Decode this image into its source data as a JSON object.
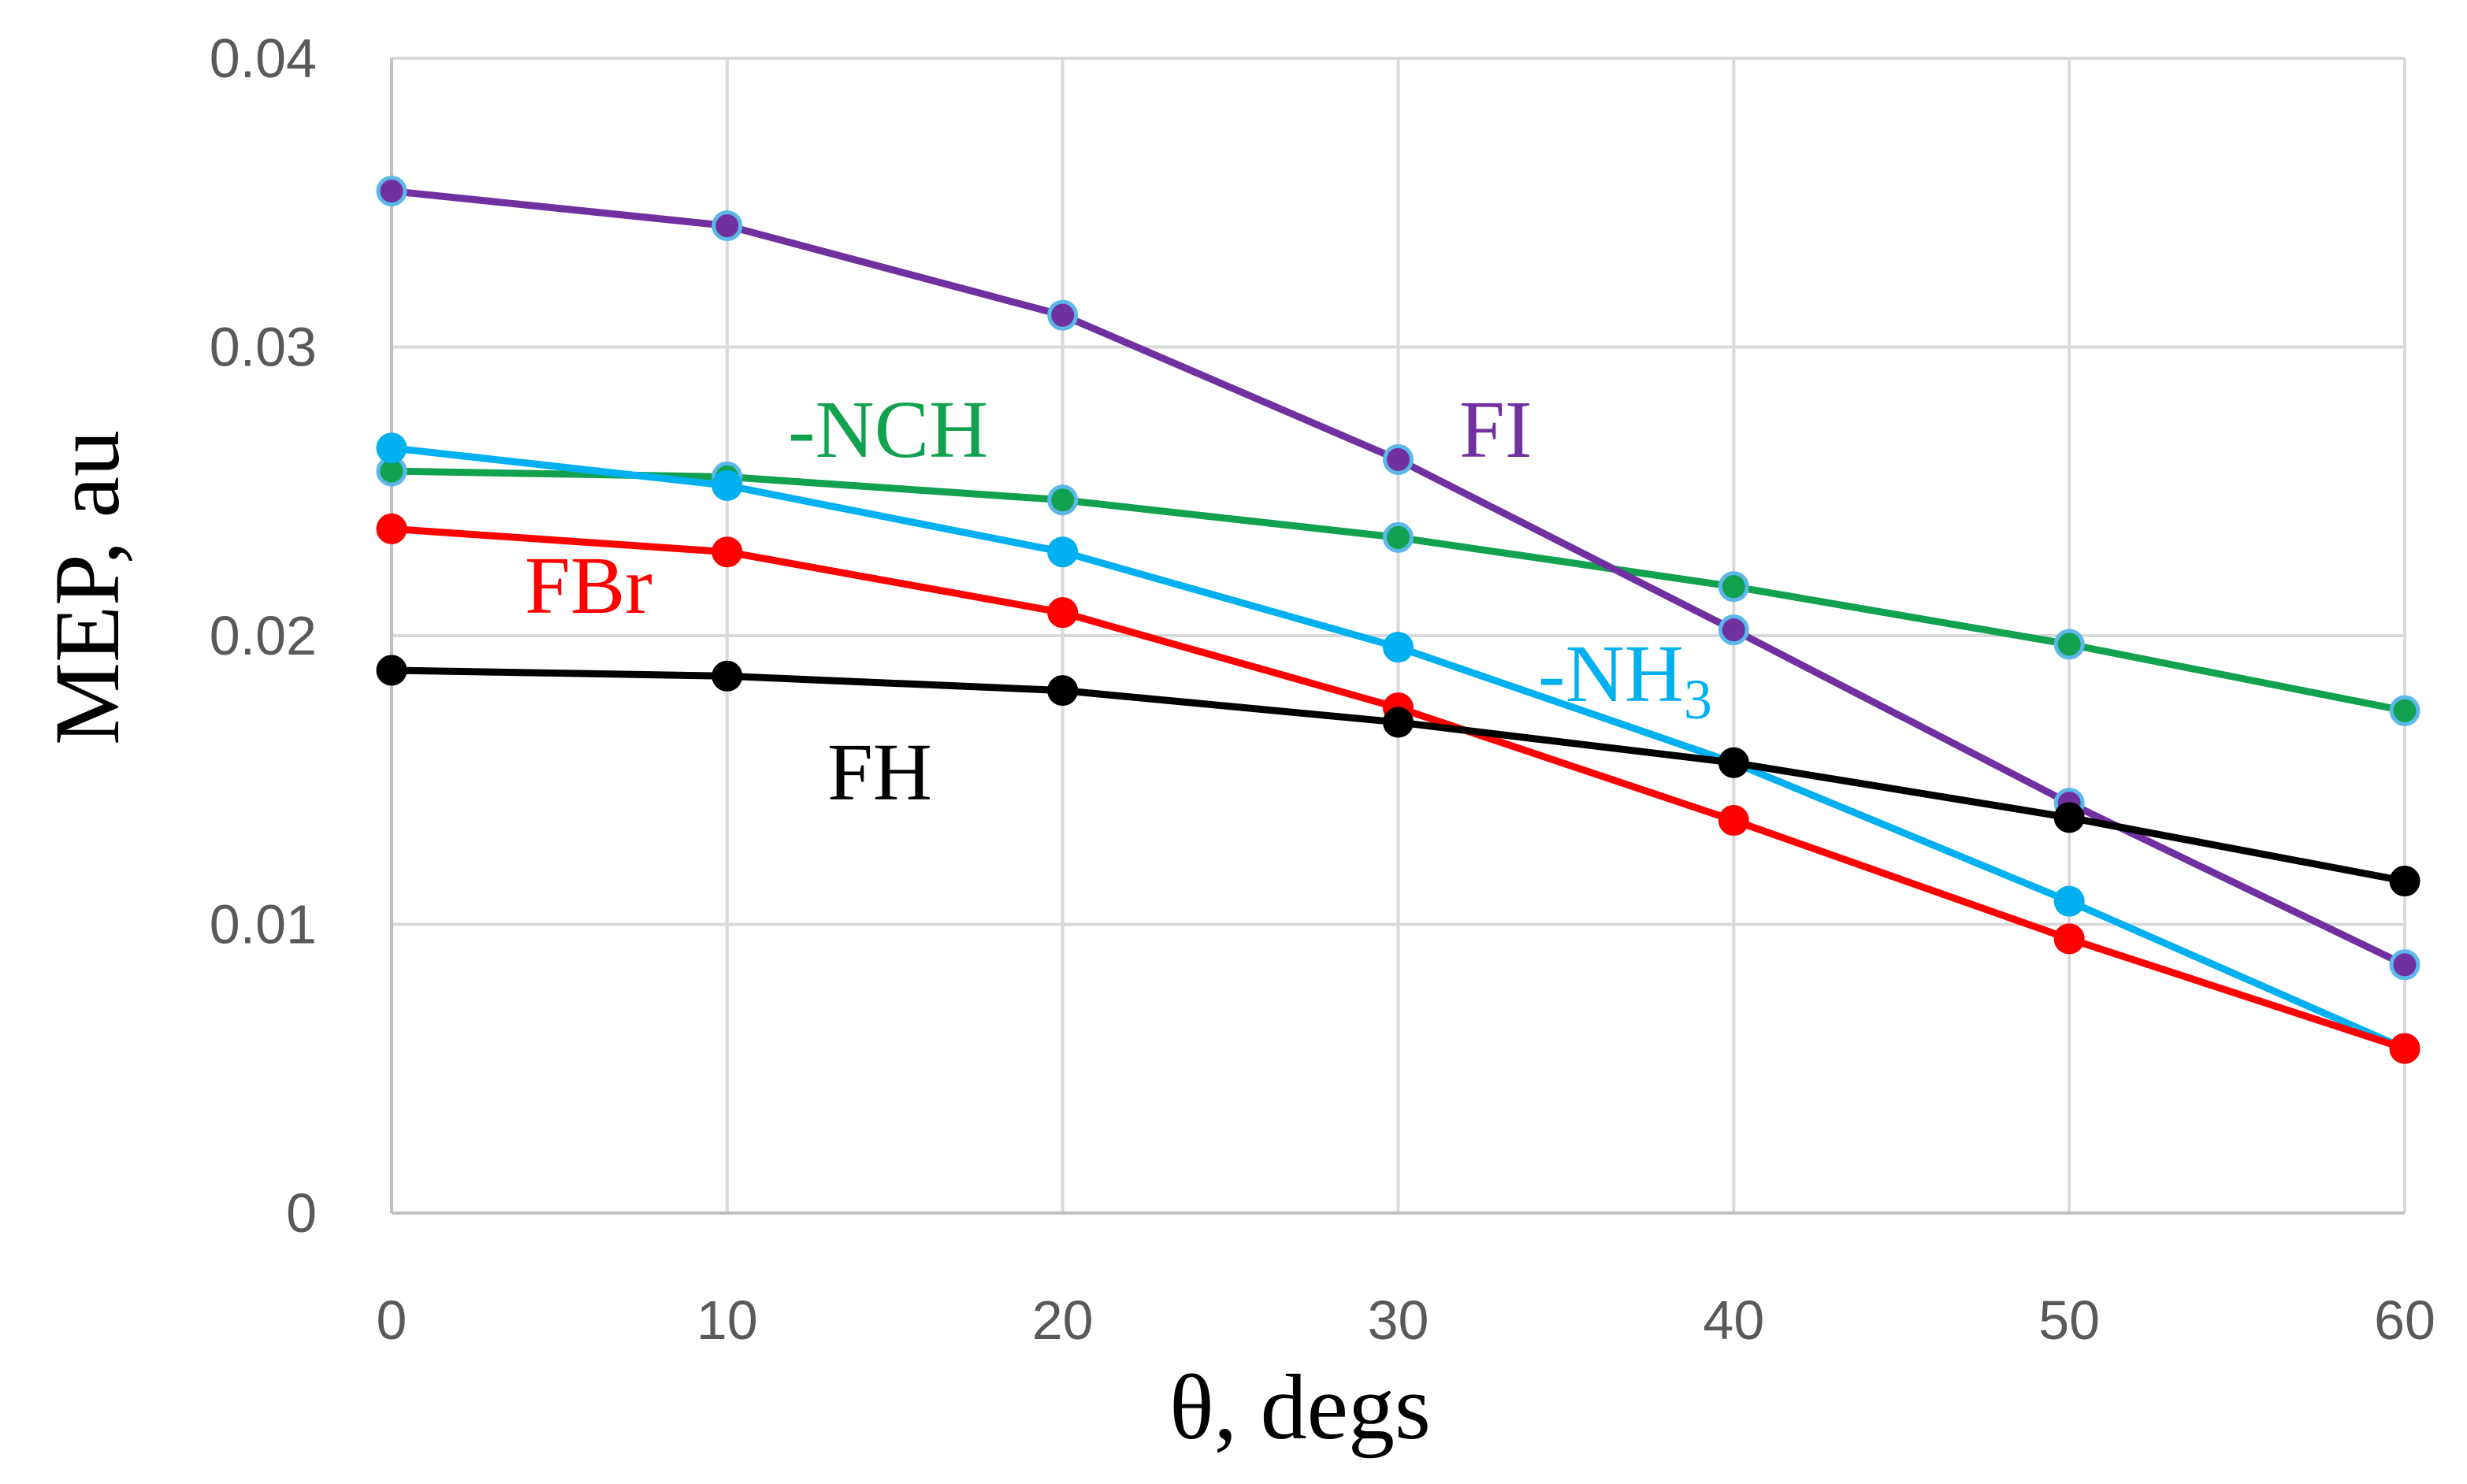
{
  "chart_data": {
    "type": "line",
    "title": "",
    "xlabel": "θ, degs",
    "ylabel": "MEP, au",
    "x": [
      0,
      10,
      20,
      30,
      40,
      50,
      60
    ],
    "xlim": [
      0,
      60
    ],
    "ylim": [
      0,
      0.04
    ],
    "x_ticks": [
      "0",
      "10",
      "20",
      "30",
      "40",
      "50",
      "60"
    ],
    "y_ticks": [
      "0",
      "0.01",
      "0.02",
      "0.03",
      "0.04"
    ],
    "y_tick_values": [
      0,
      0.01,
      0.02,
      0.03,
      0.04
    ],
    "grid": true,
    "series": [
      {
        "name": "-NCH",
        "label": "-NCH",
        "color": "#12a14f",
        "marker_color": "#12a14f",
        "values": [
          0.0257,
          0.0255,
          0.0247,
          0.0234,
          0.0217,
          0.0197,
          0.0174
        ]
      },
      {
        "name": "FI",
        "label": "FI",
        "color": "#7130a0",
        "marker_color": "#7130a0",
        "values": [
          0.0354,
          0.0342,
          0.0311,
          0.0261,
          0.0202,
          0.0142,
          0.0086
        ]
      },
      {
        "name": "-NH3",
        "label": "-NH",
        "label_sub": "3",
        "color": "#00b0f0",
        "marker_color": "#00b0f0",
        "values": [
          0.0265,
          0.0252,
          0.0229,
          0.0196,
          0.0156,
          0.0108,
          0.0057
        ]
      },
      {
        "name": "FBr",
        "label": "FBr",
        "color": "#ff0000",
        "marker_color": "#ff0000",
        "values": [
          0.0237,
          0.0229,
          0.0208,
          0.0175,
          0.0136,
          0.0095,
          0.0057
        ]
      },
      {
        "name": "FH",
        "label": "FH",
        "color": "#000000",
        "marker_color": "#000000",
        "values": [
          0.0188,
          0.0186,
          0.0181,
          0.017,
          0.0156,
          0.0137,
          0.0115
        ]
      }
    ]
  }
}
